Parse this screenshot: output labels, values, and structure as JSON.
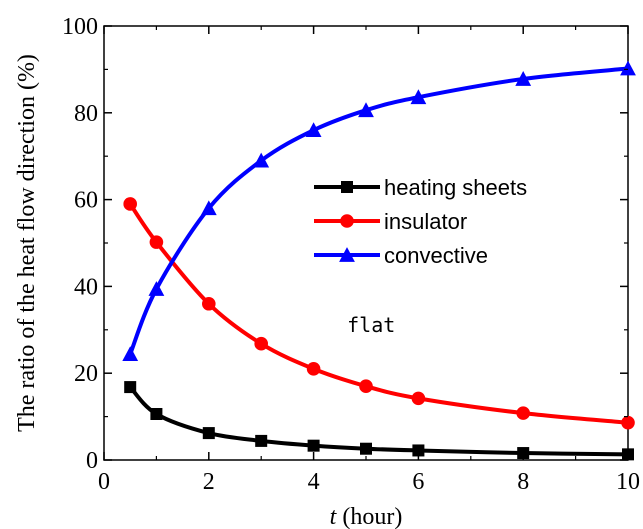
{
  "chart_data": {
    "type": "line",
    "xlabel_italic": "t",
    "xlabel_rest": " (hour)",
    "ylabel": "The ratio of the heat flow direction  (%)",
    "xlim": [
      0,
      10
    ],
    "ylim": [
      0,
      100
    ],
    "x_ticks": [
      "0",
      "2",
      "4",
      "6",
      "8",
      "10"
    ],
    "y_ticks": [
      "0",
      "20",
      "40",
      "60",
      "80",
      "100"
    ],
    "grid": false,
    "legend_position": "center-right",
    "annotation": "flat",
    "series": [
      {
        "name": "heating sheets",
        "color": "#000000",
        "marker": "square",
        "x": [
          0.5,
          1,
          2,
          3,
          4,
          5,
          6,
          8,
          10
        ],
        "y": [
          16.8,
          10.6,
          6.2,
          4.4,
          3.3,
          2.6,
          2.2,
          1.6,
          1.3
        ]
      },
      {
        "name": "insulator",
        "color": "#ff0000",
        "marker": "circle",
        "x": [
          0.5,
          1,
          2,
          3,
          4,
          5,
          6,
          8,
          10
        ],
        "y": [
          59.0,
          50.2,
          36.0,
          26.8,
          21.0,
          17.0,
          14.2,
          10.8,
          8.6
        ]
      },
      {
        "name": "convective",
        "color": "#0000ff",
        "marker": "triangle",
        "x": [
          0.5,
          1,
          2,
          3,
          4,
          5,
          6,
          8,
          10
        ],
        "y": [
          24.4,
          39.4,
          58.0,
          69.0,
          76.0,
          80.6,
          83.6,
          87.8,
          90.2
        ]
      }
    ]
  }
}
